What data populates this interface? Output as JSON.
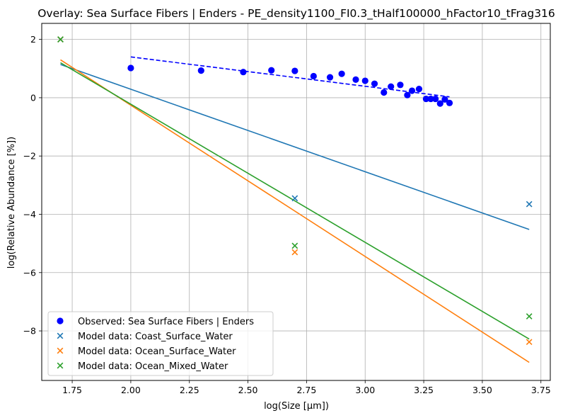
{
  "chart_data": {
    "type": "scatter",
    "title": "Overlay: Sea Surface Fibers | Enders - PE_density1100_FI0.3_tHalf100000_hFactor10_tFrag316",
    "xlabel": "log(Size [µm])",
    "ylabel": "log(Relative Abundance [%])",
    "xlim": [
      1.62,
      3.79
    ],
    "ylim": [
      -9.7,
      2.55
    ],
    "xticks": [
      1.75,
      2.0,
      2.25,
      2.5,
      2.75,
      3.0,
      3.25,
      3.5,
      3.75
    ],
    "xtick_labels": [
      "1.75",
      "2.00",
      "2.25",
      "2.50",
      "2.75",
      "3.00",
      "3.25",
      "3.50",
      "3.75"
    ],
    "yticks": [
      2,
      0,
      -2,
      -4,
      -6,
      -8
    ],
    "ytick_labels": [
      "2",
      "0",
      "−2",
      "−4",
      "−6",
      "−8"
    ],
    "grid": true,
    "legend_position": "lower-left",
    "observed": {
      "name": "Observed: Sea Surface Fibers | Enders",
      "color": "#0000ff",
      "marker": "circle",
      "x": [
        2.0,
        2.3,
        2.48,
        2.6,
        2.7,
        2.78,
        2.85,
        2.9,
        2.96,
        3.0,
        3.04,
        3.08,
        3.11,
        3.15,
        3.18,
        3.2,
        3.23,
        3.26,
        3.28,
        3.3,
        3.32,
        3.34,
        3.36
      ],
      "y": [
        1.02,
        0.93,
        0.88,
        0.94,
        0.92,
        0.74,
        0.7,
        0.82,
        0.62,
        0.58,
        0.48,
        0.18,
        0.38,
        0.44,
        0.09,
        0.24,
        0.3,
        -0.04,
        -0.04,
        -0.04,
        -0.2,
        -0.06,
        -0.18
      ]
    },
    "observed_fit": {
      "color": "#0000ff",
      "style": "dashed",
      "x": [
        2.0,
        3.36
      ],
      "y": [
        1.4,
        0.03
      ]
    },
    "series": [
      {
        "name": "Model data: Coast_Surface_Water",
        "color": "#1f77b4",
        "marker": "x",
        "x": [
          1.7,
          2.7,
          3.7
        ],
        "y": [
          2.0,
          -3.45,
          -3.65
        ],
        "fit": {
          "x": [
            1.7,
            3.7
          ],
          "y": [
            1.14,
            -4.52
          ]
        }
      },
      {
        "name": "Model data: Ocean_Surface_Water",
        "color": "#ff7f0e",
        "marker": "x",
        "x": [
          1.7,
          2.7,
          3.7
        ],
        "y": [
          2.0,
          -5.3,
          -8.38
        ],
        "fit": {
          "x": [
            1.7,
            3.7
          ],
          "y": [
            1.3,
            -9.08
          ]
        }
      },
      {
        "name": "Model data: Ocean_Mixed_Water",
        "color": "#2ca02c",
        "marker": "x",
        "x": [
          1.7,
          2.7,
          3.7
        ],
        "y": [
          2.0,
          -5.08,
          -7.5
        ],
        "fit": {
          "x": [
            1.7,
            3.7
          ],
          "y": [
            1.2,
            -8.28
          ]
        }
      }
    ]
  }
}
